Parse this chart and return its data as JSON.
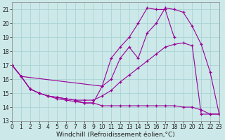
{
  "xlabel": "Windchill (Refroidissement éolien,°C)",
  "bg_color": "#cce8e8",
  "line_color": "#990099",
  "grid_color": "#aad4d4",
  "line1_x": [
    0,
    1,
    2,
    3,
    4,
    5,
    6,
    7,
    8,
    9,
    10,
    11,
    12,
    13,
    14,
    15,
    16,
    17,
    18,
    19,
    20,
    21,
    22,
    23
  ],
  "line1_y": [
    17.0,
    16.2,
    15.3,
    15.0,
    14.8,
    14.6,
    14.5,
    14.4,
    14.3,
    14.3,
    15.5,
    16.0,
    17.5,
    18.3,
    17.5,
    19.3,
    20.0,
    21.1,
    21.0,
    20.8,
    19.8,
    18.5,
    16.5,
    13.5
  ],
  "line2_x": [
    0,
    1,
    2,
    3,
    4,
    5,
    6,
    7,
    8,
    9,
    10,
    11,
    12,
    13,
    14,
    15,
    16,
    17,
    18,
    19,
    20,
    21,
    22,
    23
  ],
  "line2_y": [
    17.0,
    16.2,
    15.3,
    15.0,
    14.8,
    14.7,
    14.6,
    14.5,
    14.5,
    14.5,
    14.8,
    15.2,
    15.8,
    16.3,
    16.8,
    17.3,
    17.8,
    18.3,
    18.5,
    18.6,
    18.4,
    13.5,
    13.5,
    13.5
  ],
  "line3_x": [
    0,
    1,
    2,
    3,
    4,
    5,
    6,
    7,
    8,
    9,
    10,
    11,
    12,
    13,
    14,
    15,
    16,
    17,
    18,
    19,
    20,
    21,
    22,
    23
  ],
  "line3_y": [
    17.0,
    16.2,
    15.3,
    15.0,
    14.8,
    14.7,
    14.6,
    14.5,
    14.3,
    14.3,
    14.1,
    14.1,
    14.1,
    14.1,
    14.1,
    14.1,
    14.1,
    14.1,
    14.1,
    14.0,
    14.0,
    13.8,
    13.5,
    13.5
  ],
  "line4_x": [
    0,
    1,
    10,
    11,
    12,
    13,
    14,
    15,
    16,
    17,
    18
  ],
  "line4_y": [
    17.0,
    16.2,
    15.5,
    17.5,
    18.3,
    19.0,
    20.0,
    21.1,
    21.0,
    21.0,
    19.0
  ],
  "xlim": [
    0,
    23
  ],
  "ylim": [
    13,
    21.5
  ],
  "yticks": [
    13,
    14,
    15,
    16,
    17,
    18,
    19,
    20,
    21
  ],
  "xticks": [
    0,
    1,
    2,
    3,
    4,
    5,
    6,
    7,
    8,
    9,
    10,
    11,
    12,
    13,
    14,
    15,
    16,
    17,
    18,
    19,
    20,
    21,
    22,
    23
  ],
  "tick_fontsize": 5.5,
  "xlabel_fontsize": 6.5
}
